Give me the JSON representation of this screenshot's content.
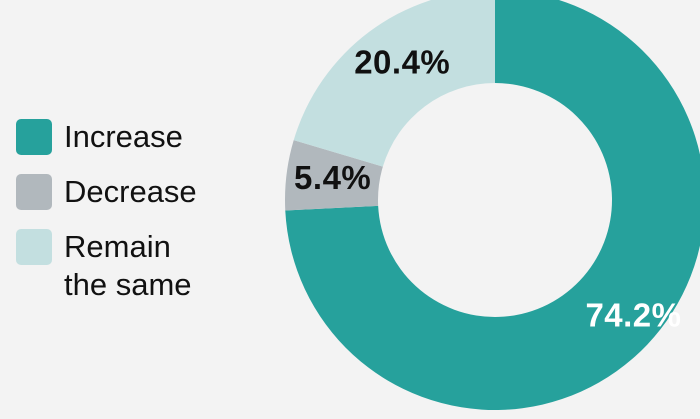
{
  "colors": {
    "background": "#f3f3f3",
    "increase": "#26a19c",
    "decrease": "#b1b8bd",
    "remain": "#c3dfe0",
    "label_dark": "#111111",
    "label_light": "#ffffff"
  },
  "legend": {
    "items": [
      {
        "label": "Increase",
        "color": "#26a19c"
      },
      {
        "label": "Decrease",
        "color": "#b1b8bd"
      },
      {
        "label": "Remain\nthe same",
        "color": "#c3dfe0"
      }
    ]
  },
  "chart_data": {
    "type": "pie",
    "variant": "donut",
    "title": "",
    "legend_position": "left",
    "categories": [
      "Increase",
      "Decrease",
      "Remain the same"
    ],
    "values": [
      74.2,
      5.4,
      20.4
    ],
    "colors": [
      "#26a19c",
      "#b1b8bd",
      "#c3dfe0"
    ],
    "data_labels": [
      "74.2%",
      "5.4%",
      "20.4%"
    ],
    "label_colors": [
      "#ffffff",
      "#111111",
      "#111111"
    ],
    "start_angle_deg": 0,
    "direction": "clockwise"
  }
}
